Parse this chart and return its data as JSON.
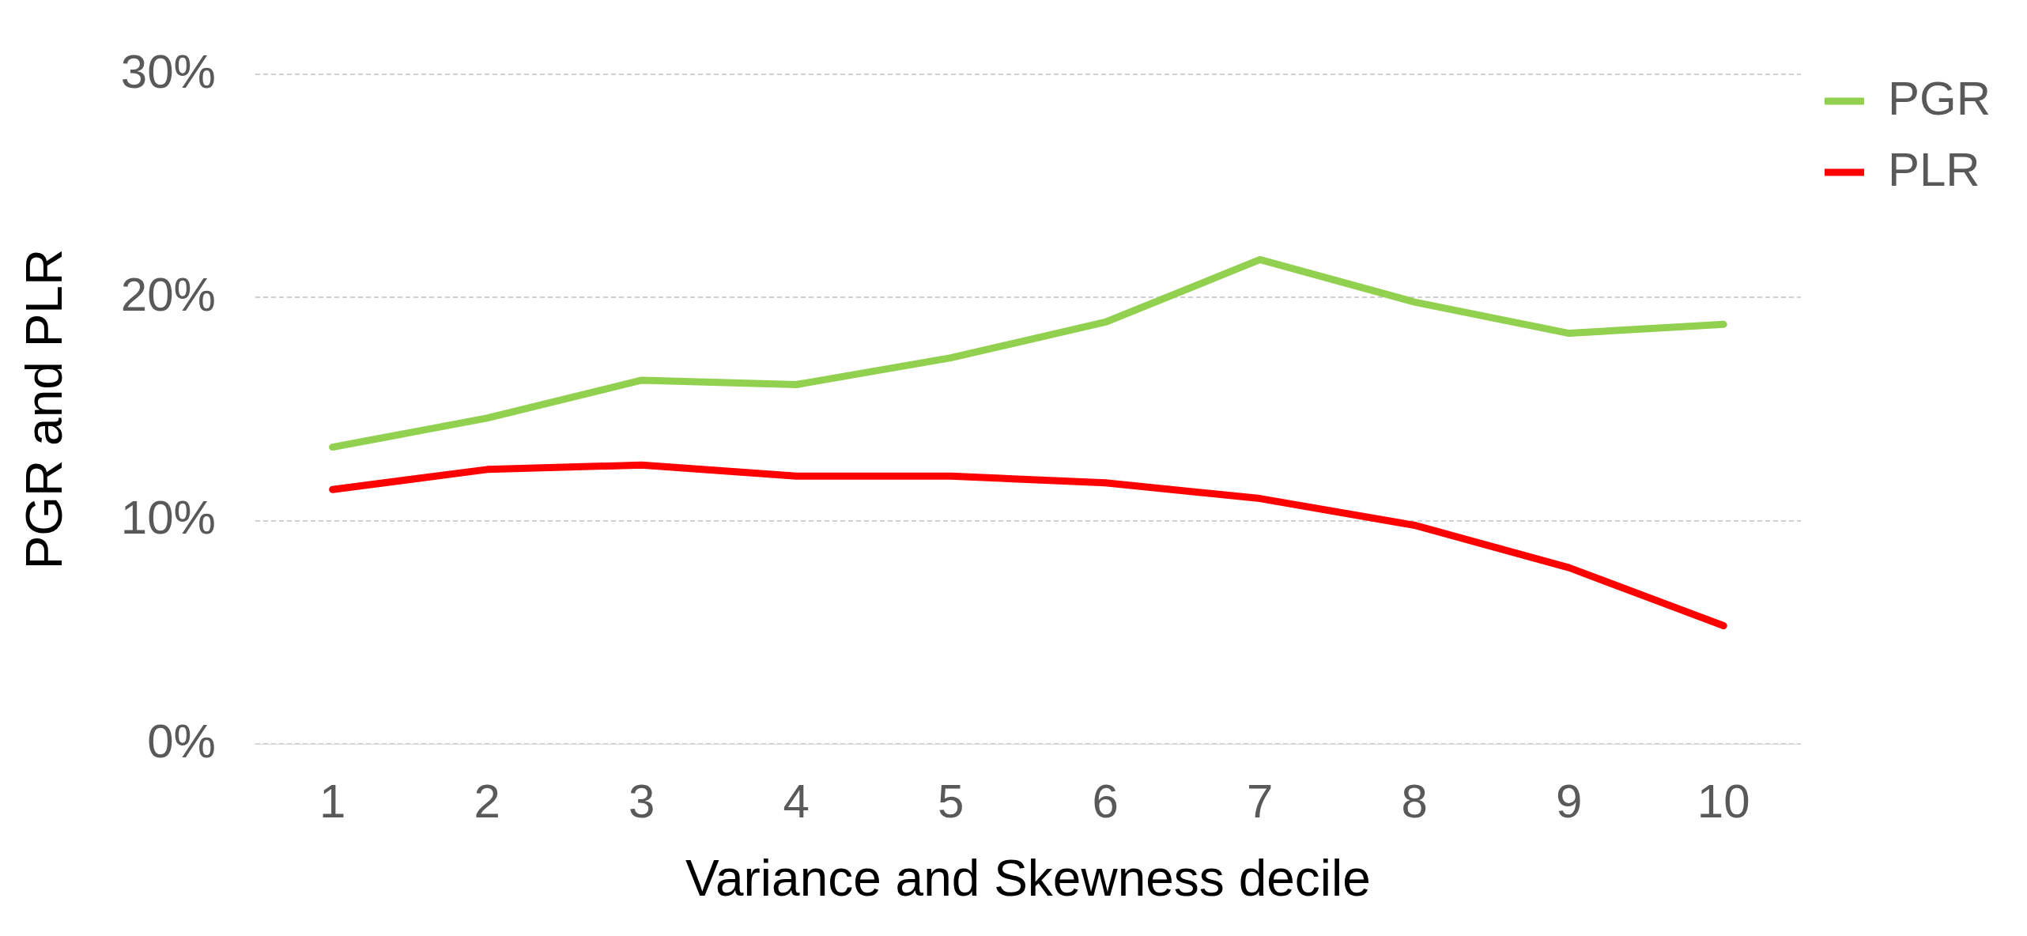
{
  "chart_data": {
    "type": "line",
    "xlabel": "Variance and Skewness decile",
    "ylabel": "PGR and PLR",
    "categories": [
      "1",
      "2",
      "3",
      "4",
      "5",
      "6",
      "7",
      "8",
      "9",
      "10"
    ],
    "series": [
      {
        "name": "PGR",
        "color": "#92d050",
        "values": [
          13.3,
          14.6,
          16.3,
          16.1,
          17.3,
          18.9,
          21.7,
          19.8,
          18.4,
          18.8
        ]
      },
      {
        "name": "PLR",
        "color": "#ff0000",
        "values": [
          11.4,
          12.3,
          12.5,
          12.0,
          12.0,
          11.7,
          11.0,
          9.8,
          7.9,
          5.3
        ]
      }
    ],
    "ylim": [
      0,
      30
    ],
    "yticks": [
      {
        "value": 0,
        "label": "0%"
      },
      {
        "value": 10,
        "label": "10%"
      },
      {
        "value": 20,
        "label": "20%"
      },
      {
        "value": 30,
        "label": "30%"
      }
    ],
    "grid": "y",
    "legend": "top right",
    "marker": "none",
    "line_style": "solid"
  }
}
